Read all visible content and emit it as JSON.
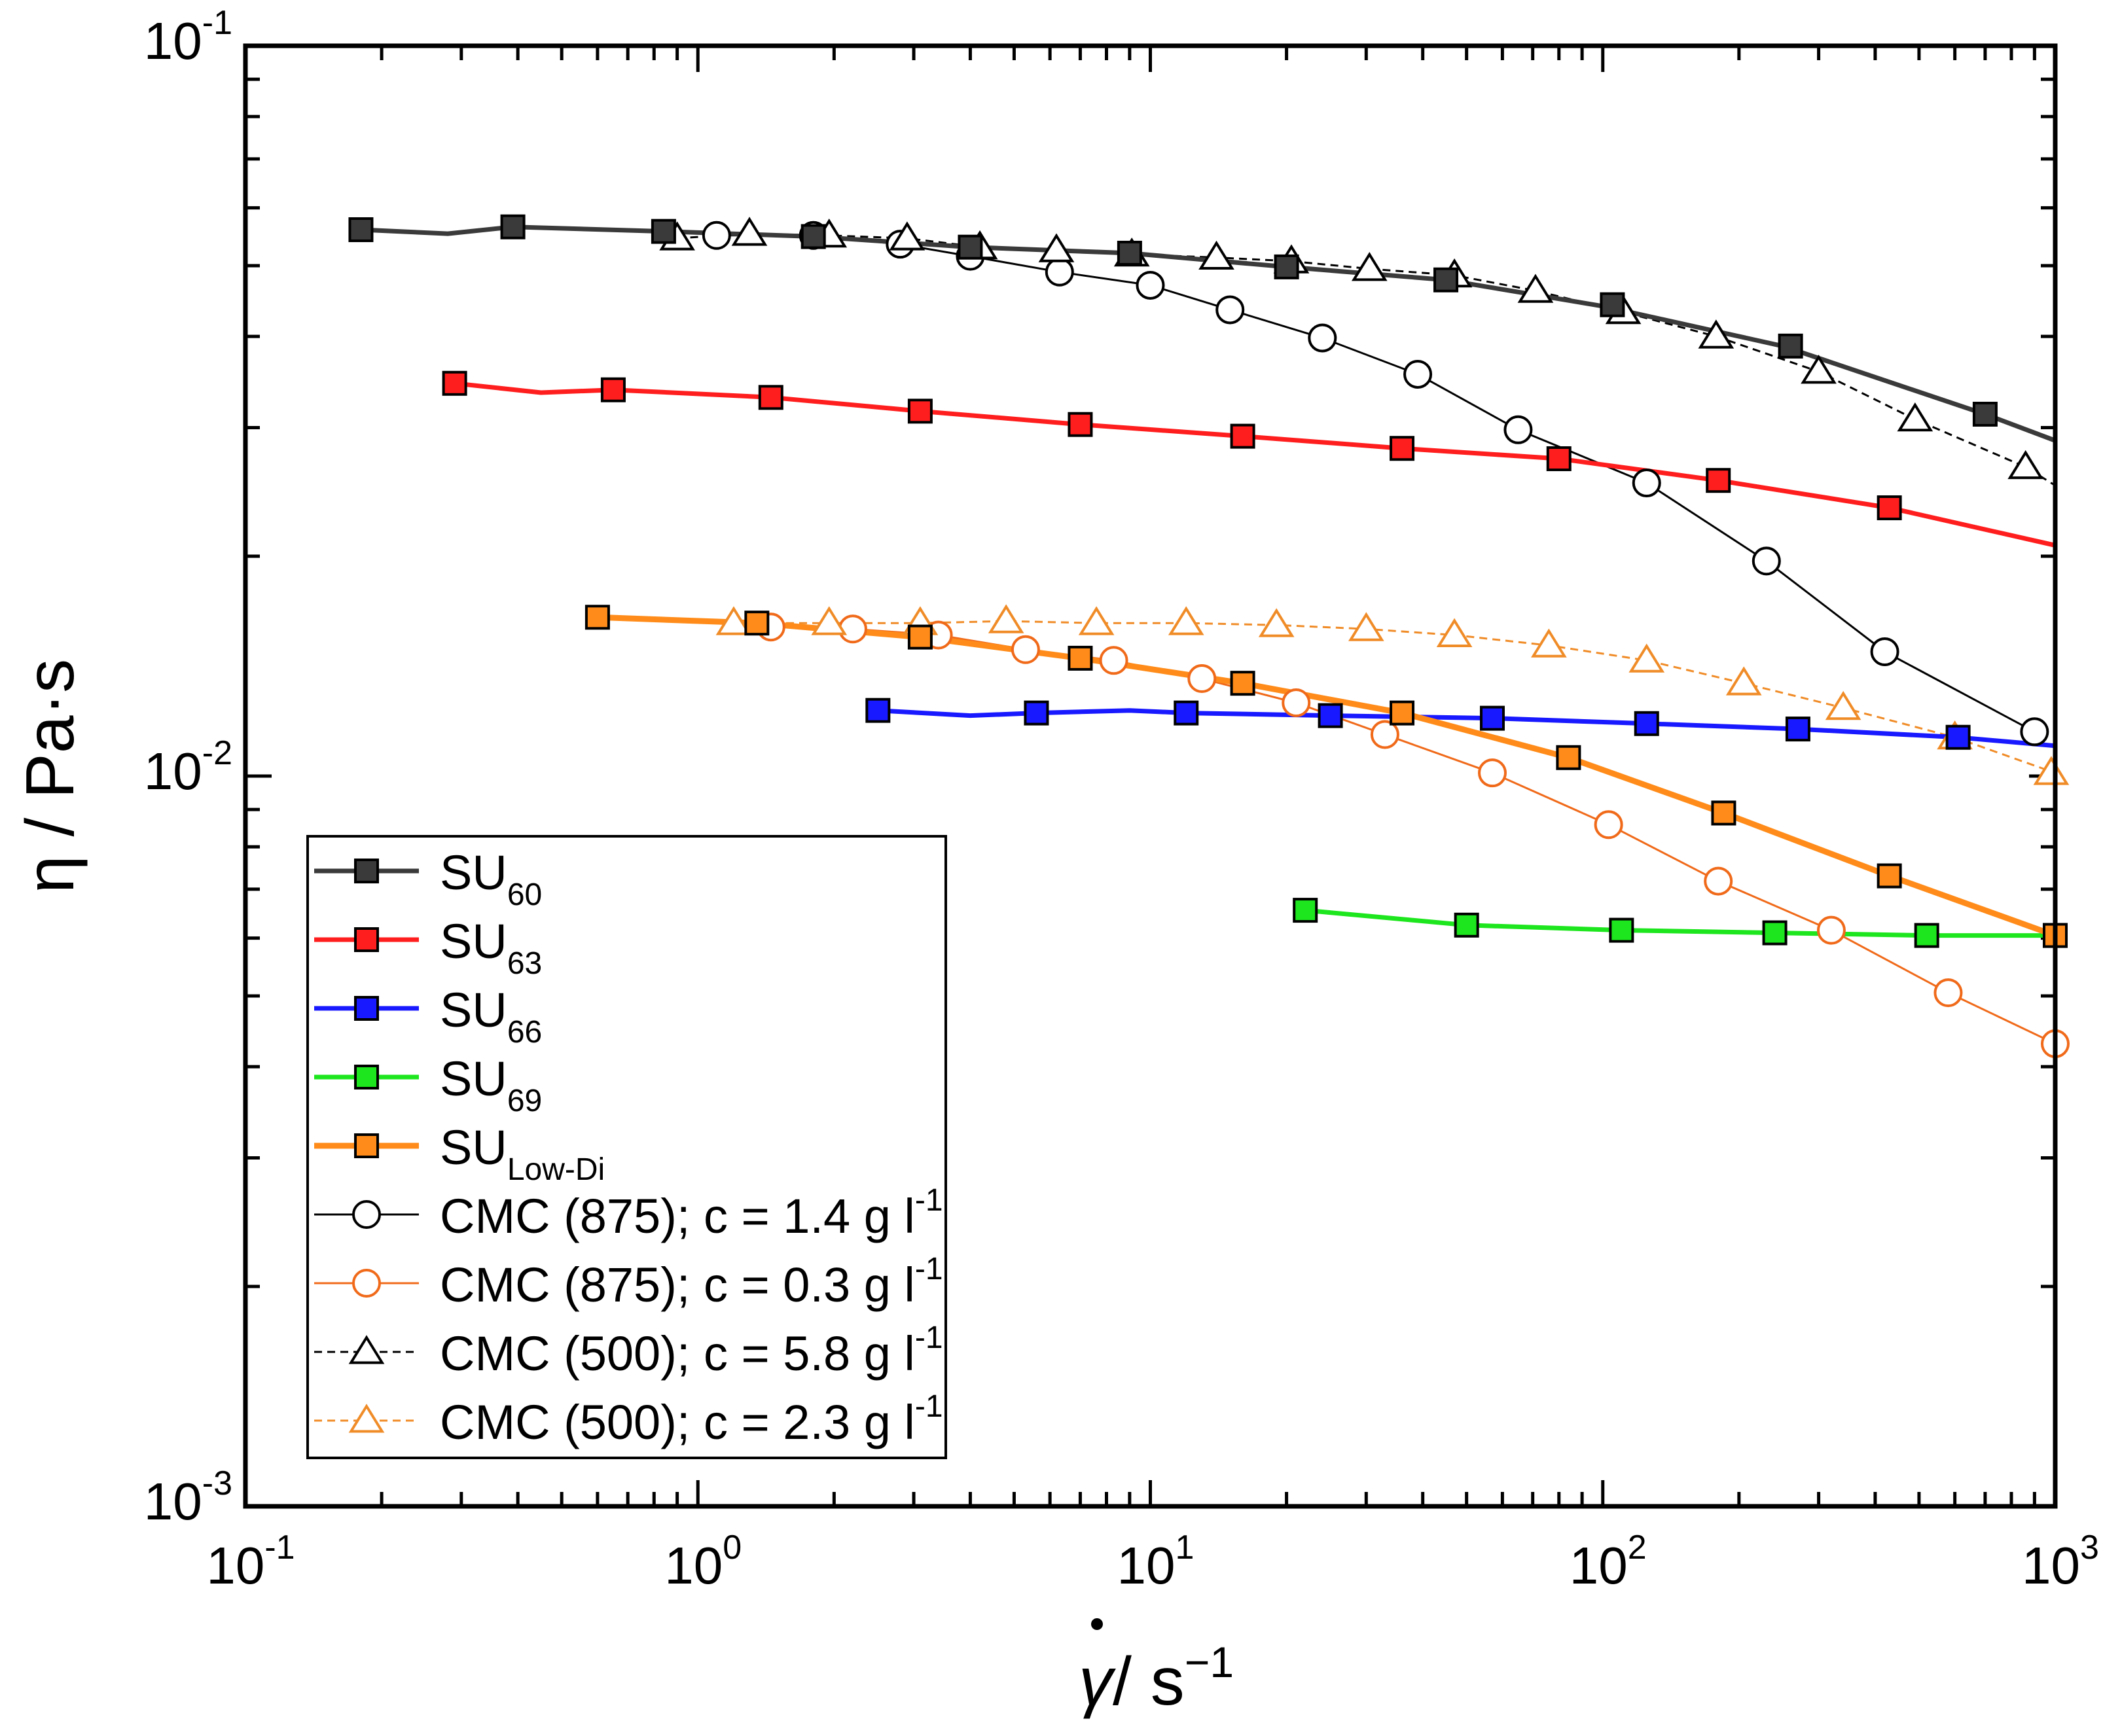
{
  "chart_data": {
    "type": "line",
    "x_scale": "log",
    "y_scale": "log",
    "xlim": [
      0.1,
      1000
    ],
    "ylim": [
      0.001,
      0.1
    ],
    "xlabel": {
      "base": "γ",
      "text": " / s",
      "sup": "−1"
    },
    "ylabel": "η / Pa·s",
    "x_ticks": [
      {
        "value": 0.1,
        "base": "10",
        "exp": "-1"
      },
      {
        "value": 1,
        "base": "10",
        "exp": "0"
      },
      {
        "value": 10,
        "base": "10",
        "exp": "1"
      },
      {
        "value": 100,
        "base": "10",
        "exp": "2"
      },
      {
        "value": 1000,
        "base": "10",
        "exp": "3"
      }
    ],
    "y_ticks": [
      {
        "value": 0.001,
        "base": "10",
        "exp": "-3"
      },
      {
        "value": 0.01,
        "base": "10",
        "exp": "-2"
      },
      {
        "value": 0.1,
        "base": "10",
        "exp": "-1"
      }
    ],
    "legend_position": "bottom-left",
    "series": [
      {
        "label": "SU",
        "sub": "60",
        "sup": "",
        "color": "#3a3a3a",
        "line": "solid",
        "width": 7,
        "marker": "square-filled",
        "x": [
          0.18,
          0.28,
          0.39,
          0.84,
          1.8,
          4,
          9,
          20,
          45,
          100,
          250,
          700,
          1000
        ],
        "y": [
          0.056,
          0.0553,
          0.0565,
          0.0557,
          0.0548,
          0.053,
          0.052,
          0.0498,
          0.0478,
          0.044,
          0.0388,
          0.0313,
          0.0288
        ],
        "mx": [
          0.18,
          0.39,
          0.84,
          1.8,
          4,
          9,
          20,
          45,
          105,
          260,
          700
        ],
        "my": [
          0.056,
          0.0565,
          0.0557,
          0.0548,
          0.053,
          0.052,
          0.0498,
          0.0478,
          0.0442,
          0.0388,
          0.0313
        ]
      },
      {
        "label": "SU",
        "sub": "63",
        "sup": "",
        "color": "#ff1e1e",
        "line": "solid",
        "width": 7,
        "marker": "square-filled",
        "x": [
          0.29,
          0.45,
          0.65,
          1.45,
          3.1,
          7,
          16,
          36,
          80,
          180,
          430,
          1000
        ],
        "y": [
          0.0345,
          0.0335,
          0.0338,
          0.033,
          0.0316,
          0.0303,
          0.0292,
          0.0281,
          0.0272,
          0.0254,
          0.0233,
          0.0207
        ],
        "mx": [
          0.29,
          0.65,
          1.45,
          3.1,
          7,
          16,
          36,
          80,
          180,
          430
        ],
        "my": [
          0.0345,
          0.0338,
          0.033,
          0.0316,
          0.0303,
          0.0292,
          0.0281,
          0.0272,
          0.0254,
          0.0233
        ]
      },
      {
        "label": "SU",
        "sub": "66",
        "sup": "",
        "color": "#1919ff",
        "line": "solid",
        "width": 7,
        "marker": "square-filled",
        "x": [
          2.5,
          4,
          5.6,
          9,
          12,
          25,
          57,
          125,
          270,
          610,
          1000
        ],
        "y": [
          0.0123,
          0.0121,
          0.0122,
          0.0123,
          0.0122,
          0.0121,
          0.012,
          0.0118,
          0.0116,
          0.0113,
          0.011
        ],
        "mx": [
          2.5,
          5.6,
          12,
          25,
          57,
          125,
          270,
          610
        ],
        "my": [
          0.0123,
          0.0122,
          0.0122,
          0.0121,
          0.012,
          0.0118,
          0.0116,
          0.0113
        ]
      },
      {
        "label": "SU",
        "sub": "69",
        "sup": "",
        "color": "#1ee61e",
        "line": "solid",
        "width": 7,
        "marker": "square-filled",
        "x": [
          22,
          50,
          110,
          240,
          520,
          1000
        ],
        "y": [
          0.00655,
          0.00625,
          0.00615,
          0.0061,
          0.00605,
          0.00605
        ],
        "mx": [
          22,
          50,
          110,
          240,
          520,
          1000
        ],
        "my": [
          0.00655,
          0.00625,
          0.00615,
          0.0061,
          0.00605,
          0.00605
        ]
      },
      {
        "label": "SU",
        "sub": "Low-Di",
        "sup": "",
        "color": "#ff8c1a",
        "line": "solid",
        "width": 9,
        "marker": "square-filled",
        "x": [
          0.6,
          1.35,
          3.1,
          7,
          16,
          36,
          84,
          185,
          430,
          1000
        ],
        "y": [
          0.0165,
          0.0162,
          0.0155,
          0.0145,
          0.0134,
          0.0122,
          0.0106,
          0.0089,
          0.0073,
          0.00605
        ],
        "mx": [
          0.6,
          1.35,
          3.1,
          7,
          16,
          36,
          84,
          185,
          430,
          1000
        ],
        "my": [
          0.0165,
          0.0162,
          0.0155,
          0.0145,
          0.0134,
          0.0122,
          0.0106,
          0.0089,
          0.0073,
          0.00605
        ]
      },
      {
        "label": "CMC (875); c = 1.4 g l",
        "sub": "",
        "sup": "-1",
        "color": "#000000",
        "line": "solid",
        "width": 3,
        "marker": "circle-open",
        "x": [
          1.1,
          1.8,
          2.8,
          4,
          6.3,
          10,
          15,
          24,
          39,
          65,
          125,
          230,
          420,
          900
        ],
        "y": [
          0.055,
          0.055,
          0.0535,
          0.0515,
          0.049,
          0.047,
          0.0435,
          0.0398,
          0.0355,
          0.0298,
          0.0252,
          0.0197,
          0.0148,
          0.0115
        ],
        "mx": [
          1.1,
          1.8,
          2.8,
          4,
          6.3,
          10,
          15,
          24,
          39,
          65,
          125,
          230,
          420,
          900
        ],
        "my": [
          0.055,
          0.055,
          0.0535,
          0.0515,
          0.049,
          0.047,
          0.0435,
          0.0398,
          0.0355,
          0.0298,
          0.0252,
          0.0197,
          0.0148,
          0.0115
        ]
      },
      {
        "label": "CMC (875); c = 0.3 g l",
        "sub": "",
        "sup": "-1",
        "color": "#f06a1a",
        "line": "solid",
        "width": 3,
        "marker": "circle-open",
        "x": [
          1.45,
          2.2,
          3.4,
          5.3,
          8.3,
          13,
          21,
          33,
          57,
          103,
          180,
          320,
          580,
          1000
        ],
        "y": [
          0.016,
          0.0159,
          0.0156,
          0.0149,
          0.0144,
          0.0136,
          0.0126,
          0.0114,
          0.0101,
          0.00858,
          0.00718,
          0.00615,
          0.00505,
          0.0043
        ],
        "mx": [
          1.45,
          2.2,
          3.4,
          5.3,
          8.3,
          13,
          21,
          33,
          57,
          103,
          180,
          320,
          580,
          1000
        ],
        "my": [
          0.016,
          0.0159,
          0.0156,
          0.0149,
          0.0144,
          0.0136,
          0.0126,
          0.0114,
          0.0101,
          0.00858,
          0.00718,
          0.00615,
          0.00505,
          0.0043
        ]
      },
      {
        "label": "CMC (500); c = 5.8 g l",
        "sub": "",
        "sup": "-1",
        "color": "#000000",
        "line": "dashed",
        "width": 3,
        "marker": "triangle-open",
        "x": [
          0.9,
          1.3,
          1.95,
          2.9,
          4.2,
          6.2,
          9.1,
          14,
          20.5,
          30.5,
          47,
          71,
          111,
          178,
          300,
          490,
          860,
          1000
        ],
        "y": [
          0.0545,
          0.0553,
          0.055,
          0.0545,
          0.053,
          0.0525,
          0.0518,
          0.0513,
          0.0507,
          0.0495,
          0.0485,
          0.0462,
          0.0432,
          0.04,
          0.0358,
          0.0308,
          0.0265,
          0.025
        ],
        "mx": [
          0.9,
          1.3,
          1.95,
          2.9,
          4.2,
          6.2,
          9.1,
          14,
          20.5,
          30.5,
          47,
          71,
          111,
          178,
          300,
          490,
          860
        ],
        "my": [
          0.0545,
          0.0553,
          0.055,
          0.0545,
          0.053,
          0.0525,
          0.0518,
          0.0513,
          0.0507,
          0.0495,
          0.0485,
          0.0462,
          0.0432,
          0.04,
          0.0358,
          0.0308,
          0.0265
        ]
      },
      {
        "label": "CMC (500); c = 2.3 g l",
        "sub": "",
        "sup": "-1",
        "color": "#f08c28",
        "line": "dashed",
        "width": 3,
        "marker": "triangle-open",
        "x": [
          1.2,
          1.95,
          3.1,
          4.8,
          7.6,
          12,
          19,
          30,
          47,
          76,
          125,
          205,
          340,
          600,
          1000
        ],
        "y": [
          0.0162,
          0.0162,
          0.0162,
          0.0163,
          0.0162,
          0.0162,
          0.0161,
          0.0159,
          0.0156,
          0.0151,
          0.0144,
          0.0134,
          0.0124,
          0.0113,
          0.0101
        ],
        "mx": [
          1.2,
          1.95,
          3.1,
          4.8,
          7.6,
          12,
          19,
          30,
          47,
          76,
          125,
          205,
          340,
          600,
          980
        ],
        "my": [
          0.0162,
          0.0162,
          0.0162,
          0.0163,
          0.0162,
          0.0162,
          0.0161,
          0.0159,
          0.0156,
          0.0151,
          0.0144,
          0.0134,
          0.0124,
          0.0113,
          0.0101
        ]
      }
    ]
  }
}
